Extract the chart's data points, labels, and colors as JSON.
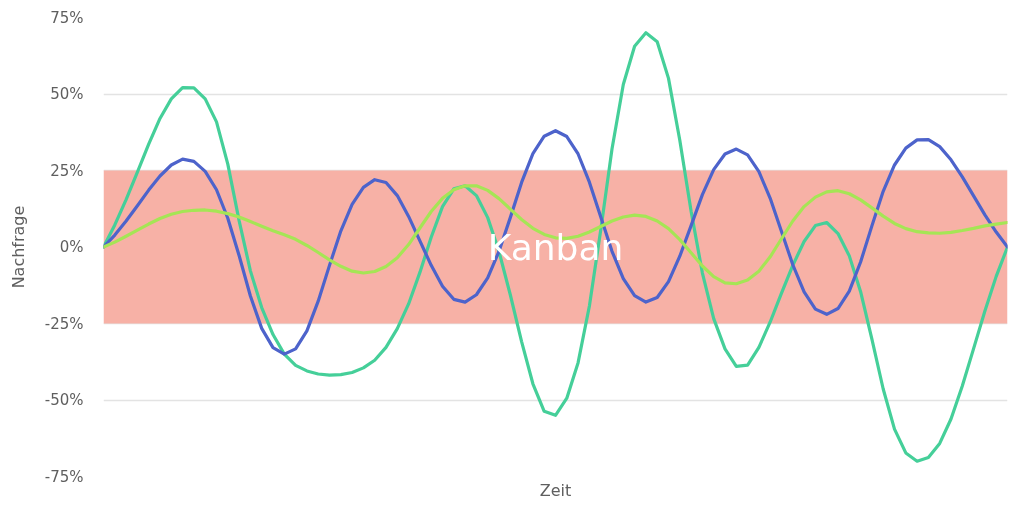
{
  "chart_data": {
    "type": "line",
    "xlabel": "Zeit",
    "ylabel": "Nachfrage",
    "categories": [
      null,
      null,
      null,
      null,
      null,
      null,
      null,
      null,
      null,
      null,
      null,
      null,
      null,
      null,
      null,
      null,
      null,
      null,
      null,
      null,
      null,
      null,
      null,
      null,
      null,
      null,
      null,
      null,
      null,
      null,
      null,
      null,
      null,
      null,
      null,
      null,
      null,
      null,
      null,
      null,
      null,
      null,
      null,
      null,
      null,
      null,
      null,
      null,
      null,
      null,
      null,
      null,
      null,
      null,
      null,
      null,
      null,
      null,
      null,
      null,
      null,
      null,
      null,
      null,
      null,
      null,
      null,
      null,
      null,
      null,
      null,
      null,
      null,
      null,
      null,
      null,
      null,
      null,
      null,
      null,
      null
    ],
    "series": [
      {
        "color": "#45cf99",
        "values": [
          0,
          7.2,
          15.5,
          24.5,
          33.6,
          42,
          48.4,
          52.1,
          52,
          48.4,
          40.9,
          27.1,
          8.6,
          -7.8,
          -19.8,
          -28.6,
          -35,
          -38.7,
          -40.5,
          -41.5,
          -41.9,
          -41.7,
          -41,
          -39.5,
          -37,
          -32.8,
          -26.7,
          -18.6,
          -8.3,
          3.2,
          13.2,
          19,
          20,
          16.8,
          9.6,
          -1.5,
          -15.6,
          -30.9,
          -44.7,
          -53.7,
          -55,
          -49.4,
          -37.8,
          -19.3,
          5.5,
          32,
          53.1,
          65.6,
          70,
          67.1,
          55.1,
          34.9,
          11.7,
          -8.5,
          -23.4,
          -33.3,
          -39,
          -38.6,
          -32.8,
          -24.5,
          -15.1,
          -6,
          1.8,
          7,
          8,
          4.4,
          -2.9,
          -14.6,
          -30.1,
          -46.4,
          -59.5,
          -67.3,
          -70,
          -68.8,
          -64.2,
          -56.2,
          -45.4,
          -33.2,
          -20.9,
          -9.6,
          0
        ]
      },
      {
        "color": "#4d63cb",
        "values": [
          0,
          3.9,
          8.5,
          13.5,
          18.6,
          23.2,
          26.8,
          28.7,
          28,
          24.7,
          18.7,
          9.4,
          -2.8,
          -16,
          -26.6,
          -32.9,
          -35,
          -33.3,
          -27.4,
          -17.7,
          -6,
          5.2,
          13.9,
          19.5,
          22,
          21.1,
          16.8,
          10,
          2,
          -6,
          -12.8,
          -17.1,
          -18,
          -15.6,
          -10.1,
          -1.4,
          9.6,
          21.1,
          30.5,
          36.2,
          38,
          36.1,
          30.4,
          21.2,
          9.9,
          -1.4,
          -10.3,
          -15.9,
          -18,
          -16.5,
          -11.3,
          -3,
          7,
          17.1,
          25.3,
          30.4,
          32,
          30.1,
          24.6,
          15.9,
          5.1,
          -5.8,
          -14.7,
          -20.3,
          -22,
          -20.1,
          -14.4,
          -4.9,
          6.9,
          18.2,
          26.8,
          32.3,
          35,
          35.1,
          32.8,
          28.5,
          22.9,
          16.7,
          10.5,
          4.9,
          0
        ]
      },
      {
        "color": "#a5e555",
        "values": [
          0,
          1.6,
          3.5,
          5.5,
          7.5,
          9.3,
          10.7,
          11.6,
          12,
          12.1,
          11.7,
          10.9,
          9.8,
          8.3,
          6.8,
          5.3,
          4,
          2.5,
          0.5,
          -1.8,
          -4.2,
          -6.3,
          -7.9,
          -8.5,
          -8,
          -6.4,
          -3.5,
          0.8,
          6.2,
          11.6,
          15.9,
          18.7,
          20,
          20,
          18.5,
          15.8,
          12.4,
          9,
          6.1,
          4.1,
          3,
          2.8,
          3.5,
          4.9,
          6.7,
          8.5,
          9.8,
          10.4,
          10,
          8.5,
          6,
          2.4,
          -1.9,
          -6.2,
          -9.7,
          -11.7,
          -12,
          -10.8,
          -7.9,
          -3.2,
          2.7,
          8.5,
          13.2,
          16.3,
          18,
          18.4,
          17.4,
          15.4,
          12.8,
          10.1,
          7.7,
          6,
          5,
          4.6,
          4.5,
          4.8,
          5.4,
          6.1,
          6.9,
          7.5,
          8
        ]
      }
    ],
    "ylim": [
      -75,
      75
    ],
    "yticks": [
      {
        "value": -75,
        "label": "-75%"
      },
      {
        "value": -50,
        "label": "-50%"
      },
      {
        "value": -25,
        "label": "-25%"
      },
      {
        "value": 0,
        "label": "0%"
      },
      {
        "value": 25,
        "label": "25%"
      },
      {
        "value": 50,
        "label": "50%"
      },
      {
        "value": 75,
        "label": "75%"
      }
    ],
    "grid": "y",
    "tick_labels": "y",
    "bands": [
      {
        "axis": "y",
        "from": -25,
        "to": 25,
        "label": "Kanban",
        "color": "#f7b1a6"
      }
    ]
  }
}
